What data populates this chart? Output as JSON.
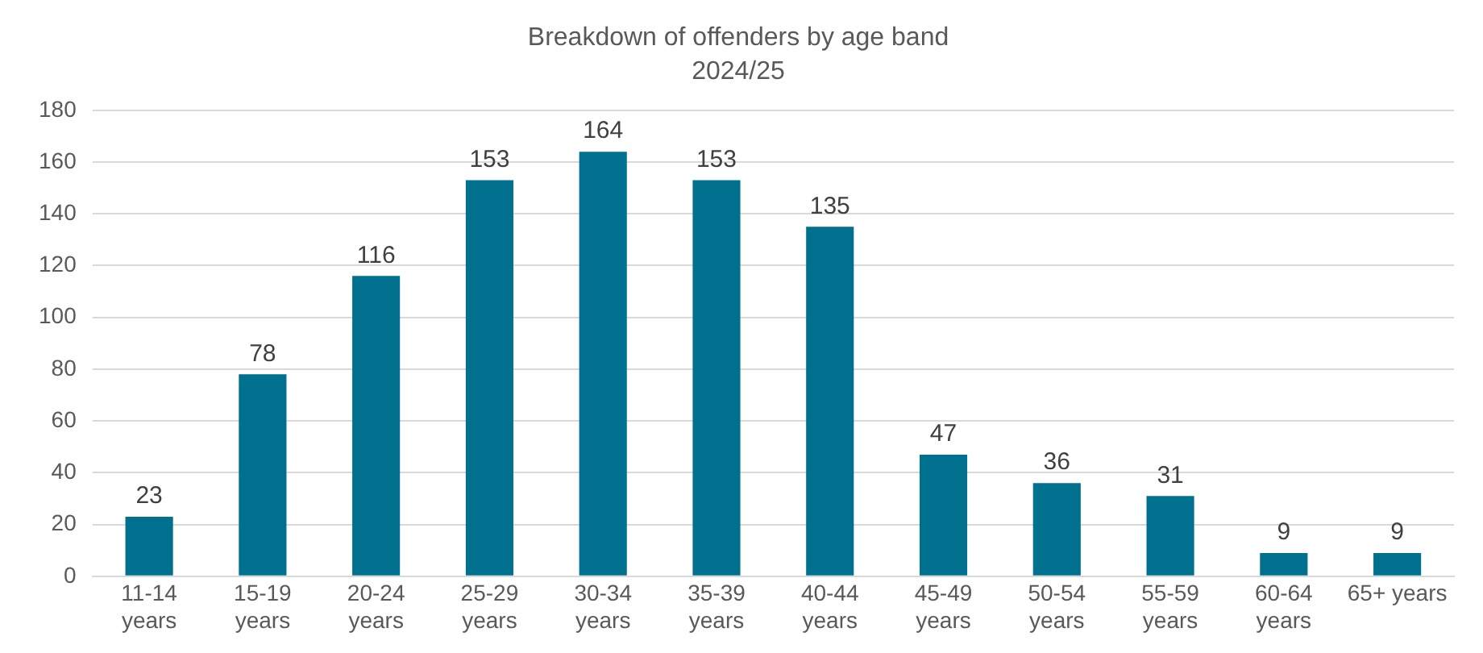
{
  "chart_data": {
    "type": "bar",
    "title": "Breakdown of offenders by age band",
    "subtitle": "2024/25",
    "categories": [
      "11-14 years",
      "15-19 years",
      "20-24 years",
      "25-29 years",
      "30-34 years",
      "35-39 years",
      "40-44 years",
      "45-49 years",
      "50-54 years",
      "55-59 years",
      "60-64 years",
      "65+ years"
    ],
    "values": [
      23,
      78,
      116,
      153,
      164,
      153,
      135,
      47,
      36,
      31,
      9,
      9
    ],
    "color": "#00708f",
    "ylim": [
      0,
      180
    ],
    "yticks": [
      0,
      20,
      40,
      60,
      80,
      100,
      120,
      140,
      160,
      180
    ],
    "grid": "y",
    "legend": false,
    "data_labels": true
  }
}
